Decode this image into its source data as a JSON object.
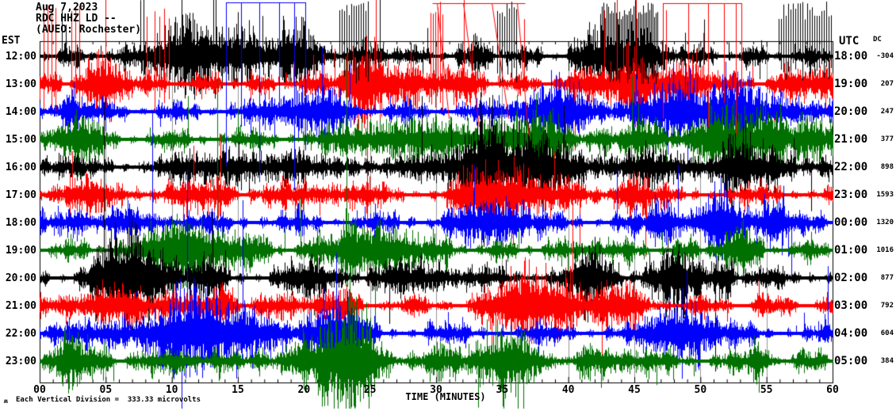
{
  "header": {
    "date_line": "Aug 7,2023",
    "station_line": "RDC HHZ LD --",
    "location_line": "(AUEO: Rochester)"
  },
  "axis": {
    "left_header": "EST",
    "right_header": "UTC",
    "dc_header": "DC",
    "x_label": "TIME (MINUTES)",
    "x_ticks": [
      "00",
      "05",
      "10",
      "15",
      "20",
      "25",
      "30",
      "35",
      "40",
      "45",
      "50",
      "55",
      "60"
    ]
  },
  "footer": {
    "mark": "ʍ",
    "scale_text": "Each Vertical Division =  333.33 microvolts"
  },
  "colors": {
    "trace_black": "#000000",
    "trace_red": "#ff0000",
    "trace_blue": "#0000ff",
    "trace_green": "#007000",
    "grid": "#969696",
    "frame": "#000000",
    "background": "#ffffff"
  },
  "chart_data": {
    "type": "line",
    "subtype": "helicorder seismogram, 12 one-hour traces stacked vertically",
    "title": "RDC HHZ LD -- (AUEO: Rochester) Aug 7,2023",
    "xlabel": "TIME (MINUTES)",
    "xlim": [
      0,
      60
    ],
    "x_tick_interval_minutes": 5,
    "grid": "vertical gray gridline every 5 minutes",
    "legend_position": "none",
    "scale_note": "Each Vertical Division = 333.33 microvolts",
    "rows": [
      {
        "est": "12:00",
        "utc": "18:00",
        "dc": "-304",
        "color": "#000000"
      },
      {
        "est": "13:00",
        "utc": "19:00",
        "dc": "207",
        "color": "#ff0000"
      },
      {
        "est": "14:00",
        "utc": "20:00",
        "dc": "247",
        "color": "#0000ff"
      },
      {
        "est": "15:00",
        "utc": "21:00",
        "dc": "377",
        "color": "#007000"
      },
      {
        "est": "16:00",
        "utc": "22:00",
        "dc": "898",
        "color": "#000000"
      },
      {
        "est": "17:00",
        "utc": "23:00",
        "dc": "1593",
        "color": "#ff0000"
      },
      {
        "est": "18:00",
        "utc": "00:00",
        "dc": "1320",
        "color": "#0000ff"
      },
      {
        "est": "19:00",
        "utc": "01:00",
        "dc": "1016",
        "color": "#007000"
      },
      {
        "est": "20:00",
        "utc": "02:00",
        "dc": "877",
        "color": "#000000"
      },
      {
        "est": "21:00",
        "utc": "03:00",
        "dc": "792",
        "color": "#ff0000"
      },
      {
        "est": "22:00",
        "utc": "04:00",
        "dc": "604",
        "color": "#0000ff"
      },
      {
        "est": "23:00",
        "utc": "05:00",
        "dc": "384",
        "color": "#007000"
      }
    ],
    "signal_character": "continuous saturated high-amplitude noise on every trace; largest excursions clip at the top of the image on the 12:00, 13:00, 17:00 and 18:00 rows"
  }
}
